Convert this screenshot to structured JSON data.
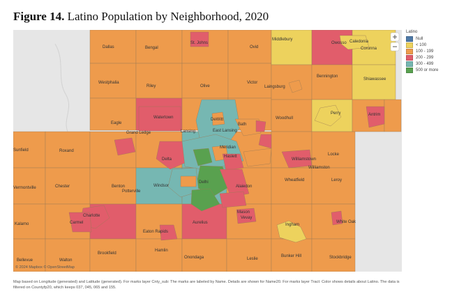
{
  "figure": {
    "number": "Figure 14.",
    "title": "Latino Population by Neighborhood, 2020"
  },
  "map": {
    "attribution": "© 2024 Mapbox © OpenStreetMap",
    "background_color": "#e6e6e6",
    "places": [
      "Dallas",
      "Bengal",
      "St. Johns",
      "Ovid",
      "Middlebury",
      "Owosso",
      "Caledonia",
      "Corunna",
      "Westphalia",
      "Riley",
      "Olive",
      "Victor",
      "Laingsburg",
      "Bennington",
      "Shiawassee",
      "Eagle",
      "Watertown",
      "DeWitt",
      "Bath",
      "Woodhull",
      "Perry",
      "Antrim",
      "Grand Ledge",
      "Lansing",
      "East Lansing",
      "Meridian",
      "Williamstown",
      "Locke",
      "Roxand",
      "Delta",
      "Haslett",
      "Williamston",
      "Chester",
      "Benton",
      "Potterville",
      "Windsor",
      "Delhi",
      "Alaiedon",
      "Wheatfield",
      "Leroy",
      "Charlotte",
      "Carmel",
      "Mason",
      "Vevay",
      "Ingham",
      "White Oak",
      "Kalamo",
      "Eaton Rapids",
      "Hamlin",
      "Aurelius",
      "Brookfield",
      "Onondaga",
      "Leslie",
      "Bunker Hill",
      "Stockbridge",
      "Bellevue",
      "Walton",
      "Vermontville",
      "Sunfield"
    ]
  },
  "legend": {
    "title": "Latino",
    "items": [
      {
        "label": "Null",
        "color": "#4e79a7"
      },
      {
        "label": "< 100",
        "color": "#edd25d"
      },
      {
        "label": "100 - 199",
        "color": "#ee9b4c"
      },
      {
        "label": "200 - 299",
        "color": "#e15d6b"
      },
      {
        "label": "300 - 499",
        "color": "#76b7b2"
      },
      {
        "label": "500 or more",
        "color": "#59a14f"
      }
    ]
  },
  "footnote": "Map based on Longitude (generated) and Latitude (generated). For marks layer Cnty_sub: The marks are labeled by Name. Details are shown for Name20. For marks layer Tract: Color shows details about Latino. The data is filtered on Countyfp20, which keeps 037, 045, 065 and 155."
}
